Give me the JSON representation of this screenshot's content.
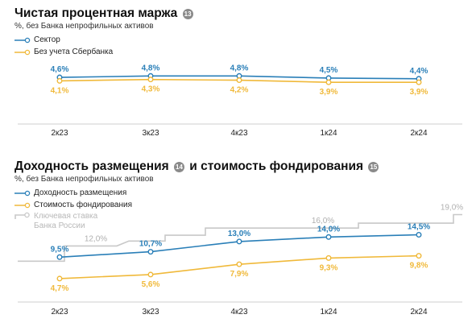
{
  "colors": {
    "blue": "#2a7fb8",
    "orange": "#f0b93a",
    "grey": "#c8c8c8",
    "axis": "#cfcfcf"
  },
  "chart1": {
    "title": "Чистая процентная маржа",
    "badge": "13",
    "subtitle": "%, без Банка непрофильных активов",
    "legend": [
      "Сектор",
      "Без учета Сбербанка"
    ]
  },
  "chart2": {
    "title_part1": "Доходность размещения",
    "badge1": "14",
    "title_part2": "и стоимость фондирования",
    "badge2": "15",
    "subtitle": "%, без Банка непрофильных активов",
    "legend": [
      "Доходность размещения",
      "Стоимость фондирования"
    ],
    "key_rate_legend_line1": "Ключевая ставка",
    "key_rate_legend_line2": "Банка России"
  },
  "chart_data": [
    {
      "type": "line",
      "title": "Чистая процентная маржа",
      "subtitle": "%, без Банка непрофильных активов",
      "categories": [
        "2к23",
        "3к23",
        "4к23",
        "1к24",
        "2к24"
      ],
      "series": [
        {
          "name": "Сектор",
          "color": "#2a7fb8",
          "values": [
            4.6,
            4.8,
            4.8,
            4.5,
            4.4
          ],
          "labels": [
            "4,6%",
            "4,8%",
            "4,8%",
            "4,5%",
            "4,4%"
          ]
        },
        {
          "name": "Без учета Сбербанка",
          "color": "#f0b93a",
          "values": [
            4.1,
            4.3,
            4.2,
            3.9,
            3.9
          ],
          "labels": [
            "4,1%",
            "4,3%",
            "4,2%",
            "3,9%",
            "3,9%"
          ]
        }
      ]
    },
    {
      "type": "line",
      "title": "Доходность размещения и стоимость фондирования",
      "subtitle": "%, без Банка непрофильных активов",
      "categories": [
        "2к23",
        "3к23",
        "4к23",
        "1к24",
        "2к24"
      ],
      "series": [
        {
          "name": "Доходность размещения",
          "color": "#2a7fb8",
          "values": [
            9.5,
            10.7,
            13.0,
            14.0,
            14.5
          ],
          "labels": [
            "9,5%",
            "10,7%",
            "13,0%",
            "14,0%",
            "14,5%"
          ]
        },
        {
          "name": "Стоимость фондирования",
          "color": "#f0b93a",
          "values": [
            4.7,
            5.6,
            7.9,
            9.3,
            9.8
          ],
          "labels": [
            "4,7%",
            "5,6%",
            "7,9%",
            "9,3%",
            "9,8%"
          ]
        }
      ],
      "key_rate": {
        "name": "Ключевая ставка Банка России",
        "color": "#c8c8c8",
        "annotations": [
          {
            "value": 12.0,
            "label": "12,0%"
          },
          {
            "value": 16.0,
            "label": "16,0%"
          },
          {
            "value": 19.0,
            "label": "19,0%"
          }
        ]
      }
    }
  ]
}
